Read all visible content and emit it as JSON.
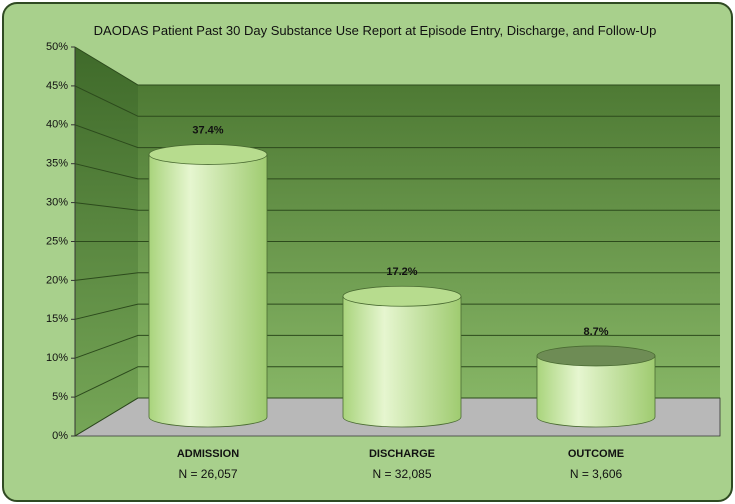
{
  "chart_data": {
    "type": "bar3d",
    "title": "DAODAS Patient Past 30 Day Substance Use Report at Episode Entry, Discharge, and Follow-Up",
    "categories": [
      "ADMISSION",
      "DISCHARGE",
      "OUTCOME"
    ],
    "category_notes": [
      "N = 26,057",
      "N = 32,085",
      "N = 3,606"
    ],
    "values": [
      37.4,
      17.2,
      8.7
    ],
    "value_labels": [
      "37.4%",
      "17.2%",
      "8.7%"
    ],
    "color": "#c4e59c",
    "ylim": [
      0,
      50
    ],
    "yticks": [
      {
        "value": 0,
        "label": "0%"
      },
      {
        "value": 5,
        "label": "5%"
      },
      {
        "value": 10,
        "label": "10%"
      },
      {
        "value": 15,
        "label": "15%"
      },
      {
        "value": 20,
        "label": "20%"
      },
      {
        "value": 25,
        "label": "25%"
      },
      {
        "value": 30,
        "label": "30%"
      },
      {
        "value": 35,
        "label": "35%"
      },
      {
        "value": 40,
        "label": "40%"
      },
      {
        "value": 45,
        "label": "45%"
      },
      {
        "value": 50,
        "label": "50%"
      }
    ],
    "grid": true
  }
}
